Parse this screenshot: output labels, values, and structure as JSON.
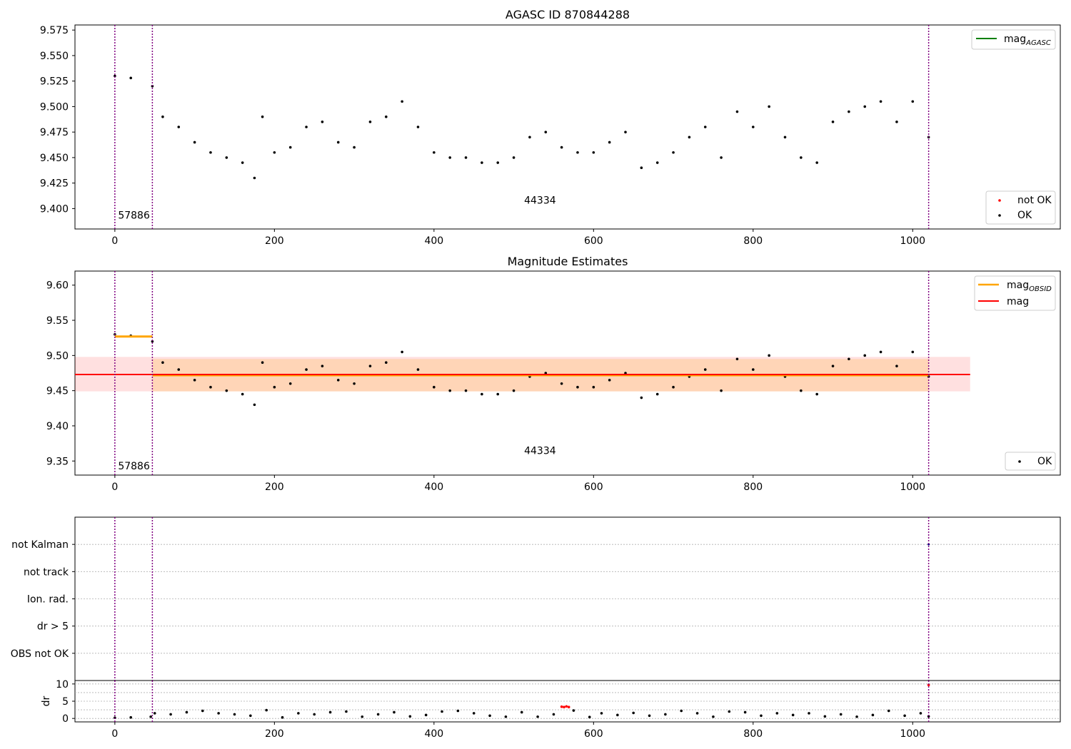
{
  "figure": {
    "title": "AGASC ID 870844288"
  },
  "chart_data": [
    {
      "type": "scatter",
      "title": "AGASC ID 870844288",
      "xlabel": "",
      "ylabel": "",
      "xlim": [
        -50,
        1185
      ],
      "ylim": [
        9.38,
        9.58
      ],
      "xticks": [
        0,
        200,
        400,
        600,
        800,
        1000
      ],
      "yticks": [
        9.4,
        9.425,
        9.45,
        9.475,
        9.5,
        9.525,
        9.55,
        9.575
      ],
      "ytick_labels": [
        "9.400",
        "9.425",
        "9.450",
        "9.475",
        "9.500",
        "9.525",
        "9.550",
        "9.575"
      ],
      "grid": false,
      "obs_boundaries": [
        0,
        47,
        1020
      ],
      "obs_labels": [
        {
          "x": 4,
          "y": 9.39,
          "text": "57886"
        },
        {
          "x": 513,
          "y": 9.405,
          "text": "44334"
        }
      ],
      "legend_top": {
        "placement": "top-right",
        "entries": [
          {
            "label": "mag",
            "subscript": "AGASC",
            "color": "#008000",
            "marker": "line"
          }
        ]
      },
      "legend_bottom": {
        "placement": "bottom-right",
        "entries": [
          {
            "label": "not OK",
            "color": "#ff0000",
            "marker": "dot"
          },
          {
            "label": "OK",
            "color": "#000000",
            "marker": "dot"
          }
        ]
      },
      "series": [
        {
          "name": "OK",
          "color": "#000000",
          "x": [
            0,
            20,
            47,
            60,
            80,
            100,
            120,
            140,
            160,
            175,
            185,
            200,
            220,
            240,
            260,
            280,
            300,
            320,
            340,
            360,
            380,
            400,
            420,
            440,
            460,
            480,
            500,
            520,
            540,
            560,
            580,
            600,
            620,
            640,
            660,
            680,
            700,
            720,
            740,
            760,
            780,
            800,
            820,
            840,
            860,
            880,
            900,
            920,
            940,
            960,
            980,
            1000,
            1020
          ],
          "y": [
            9.53,
            9.528,
            9.52,
            9.49,
            9.48,
            9.465,
            9.455,
            9.45,
            9.445,
            9.43,
            9.49,
            9.455,
            9.46,
            9.48,
            9.485,
            9.465,
            9.46,
            9.485,
            9.49,
            9.505,
            9.48,
            9.455,
            9.45,
            9.45,
            9.445,
            9.445,
            9.45,
            9.47,
            9.475,
            9.46,
            9.455,
            9.455,
            9.465,
            9.475,
            9.44,
            9.445,
            9.455,
            9.47,
            9.48,
            9.45,
            9.495,
            9.48,
            9.5,
            9.47,
            9.45,
            9.445,
            9.485,
            9.495,
            9.5,
            9.505,
            9.485,
            9.505,
            9.47
          ]
        },
        {
          "name": "not OK",
          "color": "#ff0000",
          "x": [],
          "y": []
        }
      ]
    },
    {
      "type": "scatter",
      "title": "Magnitude Estimates",
      "xlabel": "",
      "ylabel": "",
      "xlim": [
        -50,
        1185
      ],
      "ylim": [
        9.33,
        9.62
      ],
      "xticks": [
        0,
        200,
        400,
        600,
        800,
        1000
      ],
      "yticks": [
        9.35,
        9.4,
        9.45,
        9.5,
        9.55,
        9.6
      ],
      "ytick_labels": [
        "9.35",
        "9.40",
        "9.45",
        "9.50",
        "9.55",
        "9.60"
      ],
      "grid": false,
      "obs_boundaries": [
        0,
        47,
        1020
      ],
      "obs_labels": [
        {
          "x": 4,
          "y": 9.338,
          "text": "57886"
        },
        {
          "x": 513,
          "y": 9.36,
          "text": "44334"
        }
      ],
      "mag": {
        "value": 9.473,
        "lo": 9.449,
        "hi": 9.498,
        "x_start": -50,
        "x_end": 1072,
        "color": "#ff0000"
      },
      "mag_obsid": [
        {
          "x_start": 0,
          "x_end": 47,
          "value": 9.527
        },
        {
          "x_start": 47,
          "x_end": 1020,
          "value": 9.472,
          "lo": 9.449,
          "hi": 9.495
        }
      ],
      "legend_top": {
        "placement": "top-right",
        "entries": [
          {
            "label": "mag",
            "subscript": "OBSID",
            "color": "#ffa500",
            "marker": "line"
          },
          {
            "label": "mag",
            "subscript": "",
            "color": "#ff0000",
            "marker": "line"
          }
        ]
      },
      "legend_bottom": {
        "placement": "bottom-right",
        "entries": [
          {
            "label": "OK",
            "color": "#000000",
            "marker": "dot"
          }
        ]
      },
      "series": [
        {
          "name": "OK",
          "color": "#000000",
          "x": [
            0,
            20,
            47,
            60,
            80,
            100,
            120,
            140,
            160,
            175,
            185,
            200,
            220,
            240,
            260,
            280,
            300,
            320,
            340,
            360,
            380,
            400,
            420,
            440,
            460,
            480,
            500,
            520,
            540,
            560,
            580,
            600,
            620,
            640,
            660,
            680,
            700,
            720,
            740,
            760,
            780,
            800,
            820,
            840,
            860,
            880,
            900,
            920,
            940,
            960,
            980,
            1000,
            1020
          ],
          "y": [
            9.53,
            9.528,
            9.52,
            9.49,
            9.48,
            9.465,
            9.455,
            9.45,
            9.445,
            9.43,
            9.49,
            9.455,
            9.46,
            9.48,
            9.485,
            9.465,
            9.46,
            9.485,
            9.49,
            9.505,
            9.48,
            9.455,
            9.45,
            9.45,
            9.445,
            9.445,
            9.45,
            9.47,
            9.475,
            9.46,
            9.455,
            9.455,
            9.465,
            9.475,
            9.44,
            9.445,
            9.455,
            9.47,
            9.48,
            9.45,
            9.495,
            9.48,
            9.5,
            9.47,
            9.45,
            9.445,
            9.485,
            9.495,
            9.5,
            9.505,
            9.485,
            9.505,
            9.47
          ]
        }
      ]
    },
    {
      "type": "scatter",
      "title": "",
      "xlabel": "",
      "ylabel": "",
      "xlim": [
        -50,
        1185
      ],
      "categories": [
        "not Kalman",
        "not track",
        "Ion. rad.",
        "dr > 5",
        "OBS not OK"
      ],
      "grid": true,
      "obs_boundaries": [
        0,
        47,
        1020
      ],
      "flags": [
        {
          "category": "not Kalman",
          "x": 1020,
          "color": "#000080"
        }
      ]
    },
    {
      "type": "scatter",
      "title": "",
      "xlabel": "",
      "ylabel": "dr",
      "xlim": [
        -50,
        1185
      ],
      "ylim": [
        -1,
        11
      ],
      "xticks": [
        0,
        200,
        400,
        600,
        800,
        1000
      ],
      "yticks": [
        0,
        5,
        10
      ],
      "grid": true,
      "obs_boundaries": [
        0,
        47,
        1020
      ],
      "series": [
        {
          "name": "OK",
          "color": "#000000",
          "x": [
            0,
            20,
            45,
            50,
            70,
            90,
            110,
            130,
            150,
            170,
            190,
            210,
            230,
            250,
            270,
            290,
            310,
            330,
            350,
            370,
            390,
            410,
            430,
            450,
            470,
            490,
            510,
            530,
            550,
            575,
            595,
            610,
            630,
            650,
            670,
            690,
            710,
            730,
            750,
            770,
            790,
            810,
            830,
            850,
            870,
            890,
            910,
            930,
            950,
            970,
            990,
            1010,
            1020
          ],
          "y": [
            0.2,
            0.3,
            0.5,
            1.5,
            1.2,
            1.8,
            2.2,
            1.5,
            1.2,
            0.8,
            2.4,
            0.3,
            1.5,
            1.2,
            1.8,
            2.0,
            0.5,
            1.2,
            1.8,
            0.6,
            1.0,
            2.0,
            2.2,
            1.5,
            0.8,
            0.5,
            1.8,
            0.5,
            1.2,
            2.3,
            0.4,
            1.5,
            1.0,
            1.6,
            0.8,
            1.2,
            2.2,
            1.5,
            0.5,
            2.0,
            1.8,
            0.8,
            1.5,
            1.0,
            1.5,
            0.6,
            1.2,
            0.5,
            1.0,
            2.2,
            0.8,
            1.5,
            0.6
          ]
        },
        {
          "name": "not OK",
          "color": "#ff0000",
          "x": [
            560,
            563,
            566,
            569,
            1020
          ],
          "y": [
            3.4,
            3.3,
            3.5,
            3.3,
            9.7
          ]
        }
      ]
    }
  ]
}
